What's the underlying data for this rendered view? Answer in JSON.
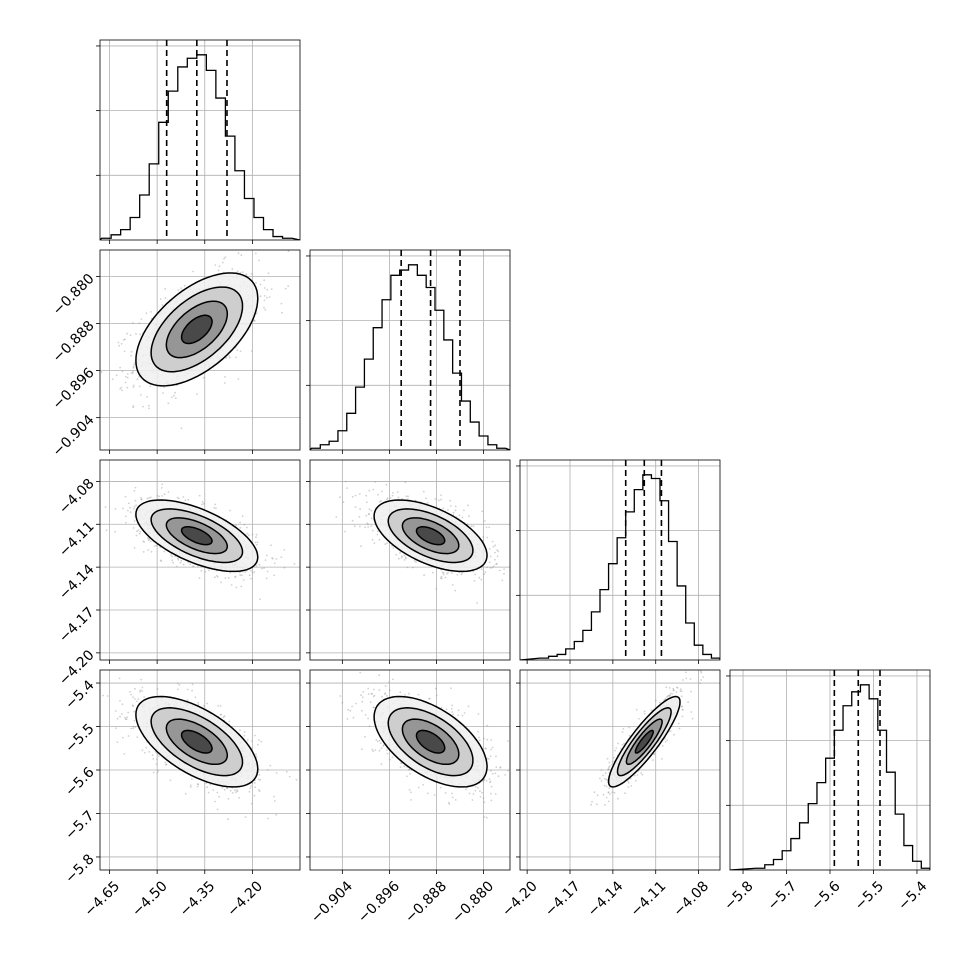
{
  "chart_data": {
    "type": "corner",
    "parameters": [
      {
        "range": [
          -4.68,
          -4.05
        ],
        "ticks": [
          -4.65,
          -4.5,
          -4.35,
          -4.2
        ],
        "tick_labels": [
          "−4.65",
          "−4.50",
          "−4.35",
          "−4.20"
        ],
        "quantiles": [
          -4.47,
          -4.375,
          -4.28
        ],
        "mean": -4.375,
        "sd": 0.096,
        "histogram": [
          {
            "x": -4.66,
            "count": 1
          },
          {
            "x": -4.63,
            "count": 3
          },
          {
            "x": -4.6,
            "count": 6
          },
          {
            "x": -4.57,
            "count": 13
          },
          {
            "x": -4.54,
            "count": 26
          },
          {
            "x": -4.51,
            "count": 44
          },
          {
            "x": -4.48,
            "count": 68
          },
          {
            "x": -4.45,
            "count": 86
          },
          {
            "x": -4.42,
            "count": 100
          },
          {
            "x": -4.39,
            "count": 105
          },
          {
            "x": -4.36,
            "count": 107
          },
          {
            "x": -4.33,
            "count": 98
          },
          {
            "x": -4.3,
            "count": 82
          },
          {
            "x": -4.27,
            "count": 60
          },
          {
            "x": -4.24,
            "count": 40
          },
          {
            "x": -4.21,
            "count": 24
          },
          {
            "x": -4.18,
            "count": 13
          },
          {
            "x": -4.15,
            "count": 6
          },
          {
            "x": -4.12,
            "count": 2
          },
          {
            "x": -4.09,
            "count": 1
          }
        ]
      },
      {
        "range": [
          -0.9095,
          -0.8755
        ],
        "ticks": [
          -0.904,
          -0.896,
          -0.888,
          -0.88
        ],
        "tick_labels": [
          "−0.904",
          "−0.896",
          "−0.888",
          "−0.880"
        ],
        "quantiles": [
          -0.894,
          -0.889,
          -0.884
        ],
        "mean": -0.889,
        "sd": 0.0048,
        "histogram": [
          {
            "x": -0.9085,
            "count": 1
          },
          {
            "x": -0.907,
            "count": 3
          },
          {
            "x": -0.9055,
            "count": 5
          },
          {
            "x": -0.904,
            "count": 11
          },
          {
            "x": -0.9025,
            "count": 21
          },
          {
            "x": -0.901,
            "count": 36
          },
          {
            "x": -0.8995,
            "count": 52
          },
          {
            "x": -0.898,
            "count": 70
          },
          {
            "x": -0.8965,
            "count": 86
          },
          {
            "x": -0.895,
            "count": 100
          },
          {
            "x": -0.8935,
            "count": 103
          },
          {
            "x": -0.892,
            "count": 106
          },
          {
            "x": -0.8905,
            "count": 100
          },
          {
            "x": -0.889,
            "count": 93
          },
          {
            "x": -0.8875,
            "count": 80
          },
          {
            "x": -0.886,
            "count": 63
          },
          {
            "x": -0.8845,
            "count": 44
          },
          {
            "x": -0.883,
            "count": 28
          },
          {
            "x": -0.8815,
            "count": 16
          },
          {
            "x": -0.88,
            "count": 8
          },
          {
            "x": -0.8785,
            "count": 3
          },
          {
            "x": -0.877,
            "count": 1
          }
        ]
      },
      {
        "range": [
          -4.205,
          -4.065
        ],
        "ticks": [
          -4.2,
          -4.17,
          -4.14,
          -4.11,
          -4.08
        ],
        "tick_labels": [
          "−4.20",
          "−4.17",
          "−4.14",
          "−4.11",
          "−4.08"
        ],
        "quantiles": [
          -4.131,
          -4.118,
          -4.106
        ],
        "mean": -4.118,
        "sd": 0.0125,
        "histogram": [
          {
            "x": -4.188,
            "count": 1
          },
          {
            "x": -4.182,
            "count": 2
          },
          {
            "x": -4.176,
            "count": 3
          },
          {
            "x": -4.17,
            "count": 6
          },
          {
            "x": -4.164,
            "count": 10
          },
          {
            "x": -4.158,
            "count": 16
          },
          {
            "x": -4.152,
            "count": 26
          },
          {
            "x": -4.146,
            "count": 38
          },
          {
            "x": -4.14,
            "count": 52
          },
          {
            "x": -4.134,
            "count": 66
          },
          {
            "x": -4.128,
            "count": 80
          },
          {
            "x": -4.122,
            "count": 92
          },
          {
            "x": -4.116,
            "count": 100
          },
          {
            "x": -4.11,
            "count": 98
          },
          {
            "x": -4.104,
            "count": 86
          },
          {
            "x": -4.098,
            "count": 64
          },
          {
            "x": -4.092,
            "count": 40
          },
          {
            "x": -4.086,
            "count": 20
          },
          {
            "x": -4.08,
            "count": 8
          },
          {
            "x": -4.074,
            "count": 3
          },
          {
            "x": -4.068,
            "count": 1
          }
        ]
      },
      {
        "range": [
          -5.83,
          -5.37
        ],
        "ticks": [
          -5.8,
          -5.7,
          -5.6,
          -5.5,
          -5.4
        ],
        "tick_labels": [
          "−5.8",
          "−5.7",
          "−5.6",
          "−5.5",
          "−5.4"
        ],
        "quantiles": [
          -5.59,
          -5.535,
          -5.485
        ],
        "mean": -5.535,
        "sd": 0.052,
        "histogram": [
          {
            "x": -5.76,
            "count": 1
          },
          {
            "x": -5.74,
            "count": 3
          },
          {
            "x": -5.72,
            "count": 6
          },
          {
            "x": -5.7,
            "count": 11
          },
          {
            "x": -5.68,
            "count": 18
          },
          {
            "x": -5.66,
            "count": 27
          },
          {
            "x": -5.64,
            "count": 38
          },
          {
            "x": -5.62,
            "count": 50
          },
          {
            "x": -5.6,
            "count": 64
          },
          {
            "x": -5.58,
            "count": 80
          },
          {
            "x": -5.56,
            "count": 94
          },
          {
            "x": -5.54,
            "count": 102
          },
          {
            "x": -5.52,
            "count": 106
          },
          {
            "x": -5.5,
            "count": 98
          },
          {
            "x": -5.48,
            "count": 80
          },
          {
            "x": -5.46,
            "count": 56
          },
          {
            "x": -5.44,
            "count": 32
          },
          {
            "x": -5.42,
            "count": 14
          },
          {
            "x": -5.4,
            "count": 5
          },
          {
            "x": -5.38,
            "count": 1
          }
        ]
      }
    ],
    "correlations": [
      {
        "row": 1,
        "col": 0,
        "rho": 0.55
      },
      {
        "row": 2,
        "col": 0,
        "rho": -0.6
      },
      {
        "row": 2,
        "col": 1,
        "rho": -0.55
      },
      {
        "row": 3,
        "col": 0,
        "rho": -0.6
      },
      {
        "row": 3,
        "col": 1,
        "rho": -0.55
      },
      {
        "row": 3,
        "col": 2,
        "rho": 0.88
      }
    ],
    "contour_levels_sigma": [
      0.5,
      1.0,
      1.5,
      2.0
    ],
    "grid": true
  }
}
